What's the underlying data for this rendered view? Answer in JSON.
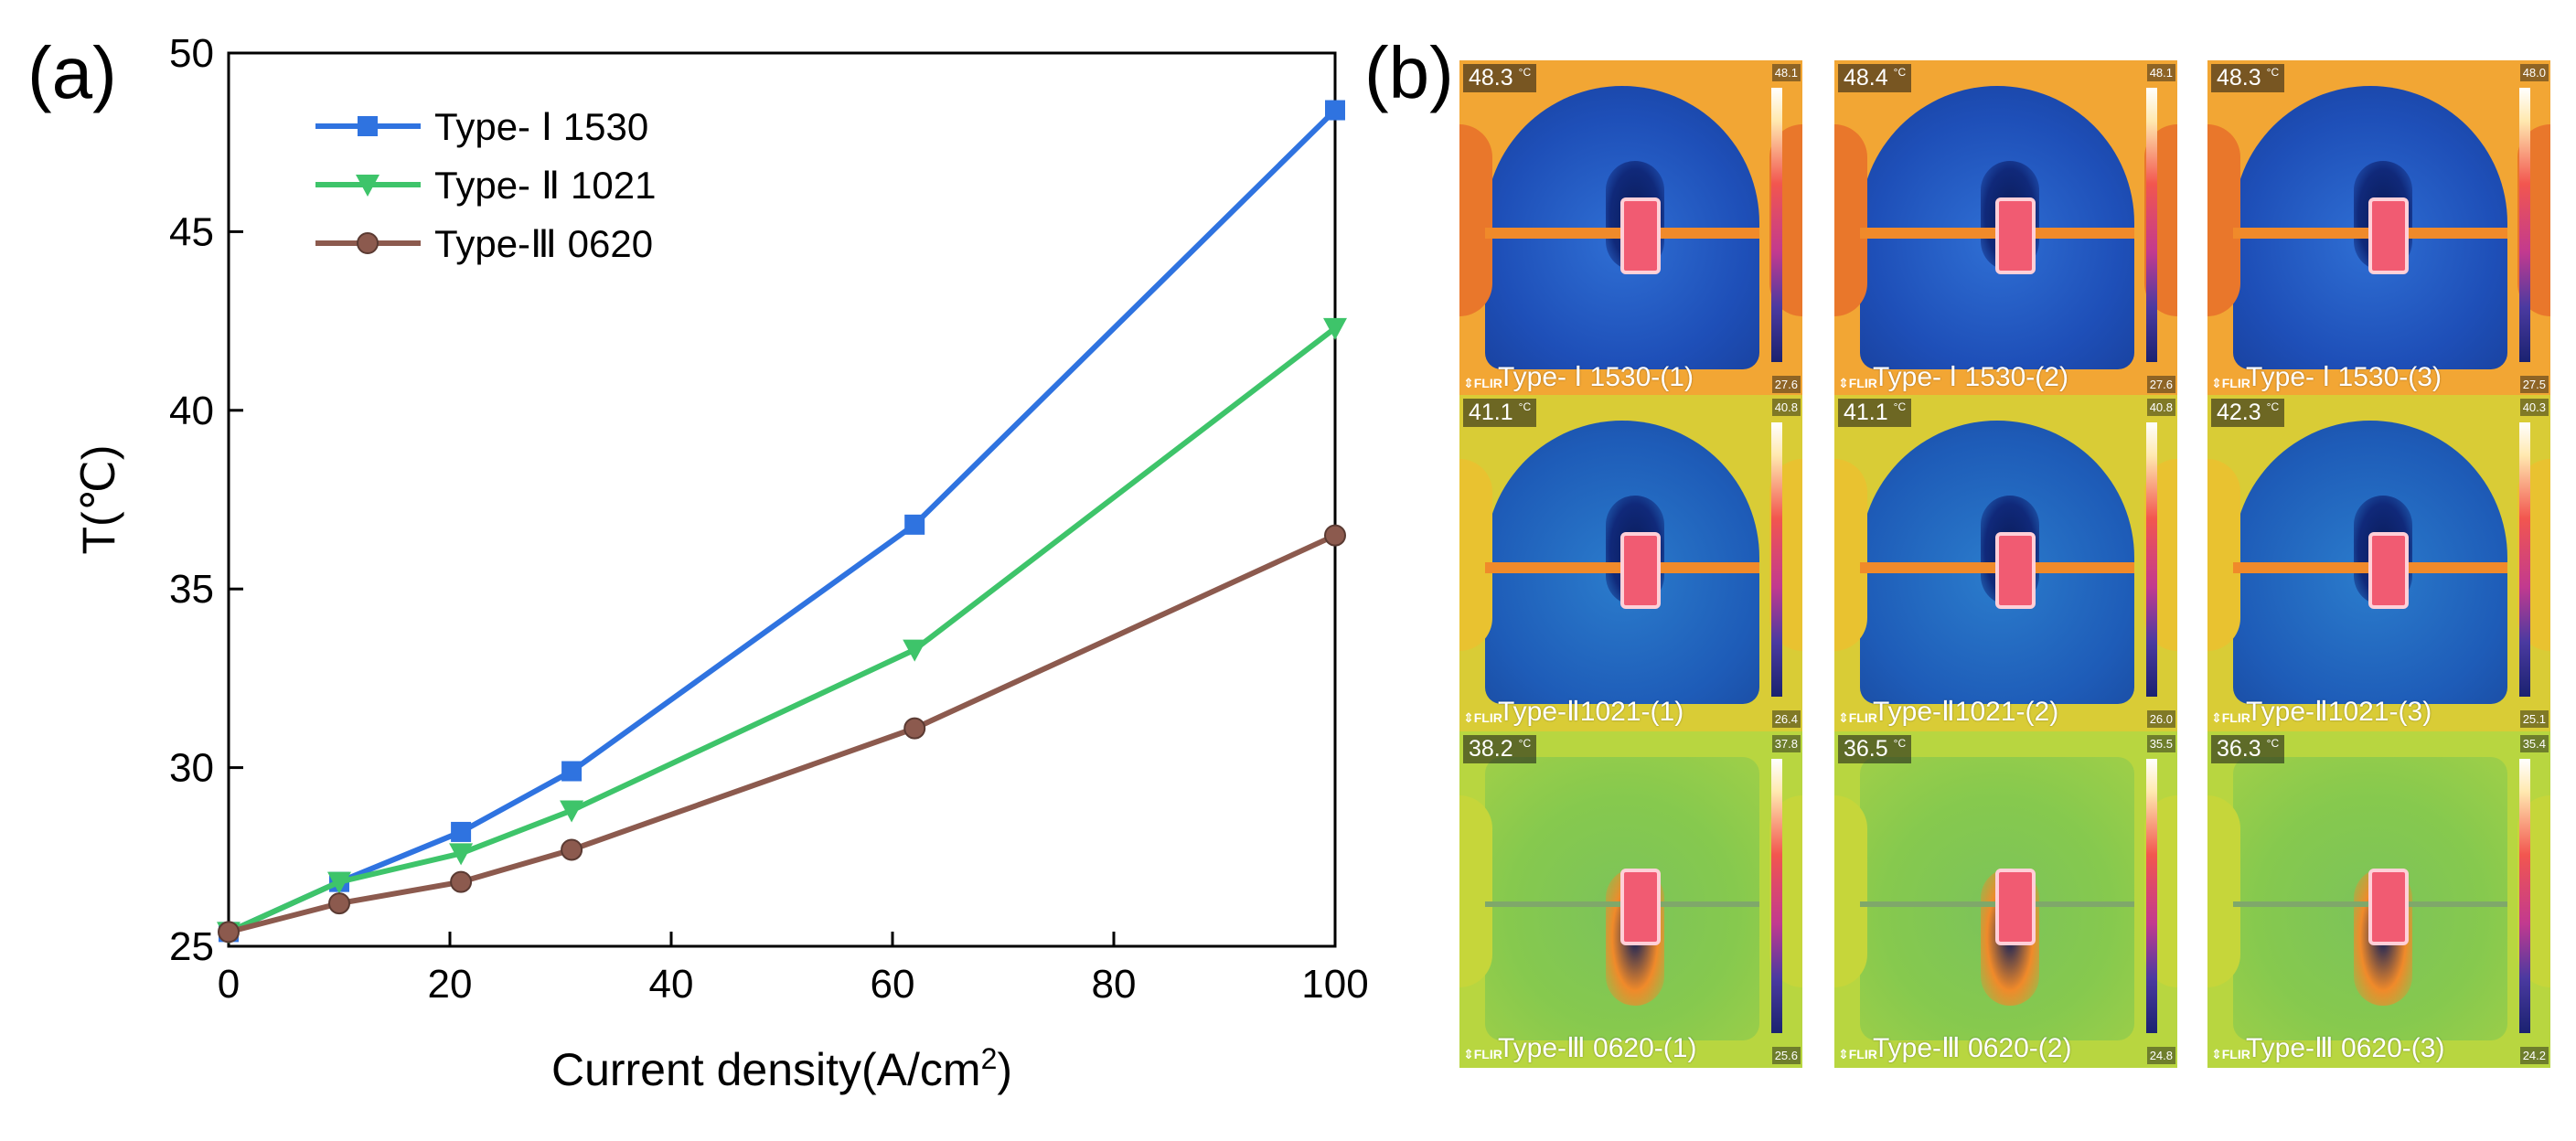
{
  "panel_labels": {
    "a": "(a)",
    "b": "(b)"
  },
  "chart_data": {
    "type": "line",
    "title": "",
    "xlabel": "Current density(A/cm",
    "xlabel_sup": "2",
    "xlabel_close": ")",
    "ylabel": "T(℃)",
    "xlim": [
      0,
      100
    ],
    "ylim": [
      25,
      50
    ],
    "xticks": [
      0,
      20,
      40,
      60,
      80,
      100
    ],
    "yticks": [
      25,
      30,
      35,
      40,
      45,
      50
    ],
    "legend_position": "top-left",
    "x": [
      0,
      10,
      21,
      31,
      62,
      100
    ],
    "series": [
      {
        "name": "Type- Ⅰ  1530",
        "color": "#2f73e0",
        "marker": "square",
        "values": [
          25.4,
          26.8,
          28.2,
          29.9,
          36.8,
          48.4
        ]
      },
      {
        "name": "Type- Ⅱ  1021",
        "color": "#3ec46a",
        "marker": "triangle-down",
        "values": [
          25.4,
          26.8,
          27.6,
          28.8,
          33.3,
          42.3
        ]
      },
      {
        "name": "Type-Ⅲ 0620",
        "color": "#8c5a4e",
        "marker": "circle",
        "values": [
          25.4,
          26.2,
          26.8,
          27.7,
          31.1,
          36.5
        ]
      }
    ]
  },
  "thermal_images": [
    {
      "caption": "Type- Ⅰ 1530-(1)",
      "max_temp": "48.3",
      "scale_max": "48.1",
      "scale_min": "27.6"
    },
    {
      "caption": "Type- Ⅰ 1530-(2)",
      "max_temp": "48.4",
      "scale_max": "48.1",
      "scale_min": "27.6"
    },
    {
      "caption": "Type- Ⅰ 1530-(3)",
      "max_temp": "48.3",
      "scale_max": "48.0",
      "scale_min": "27.5"
    },
    {
      "caption": "Type-Ⅱ1021-(1)",
      "max_temp": "41.1",
      "scale_max": "40.8",
      "scale_min": "26.4"
    },
    {
      "caption": "Type-Ⅱ1021-(2)",
      "max_temp": "41.1",
      "scale_max": "40.8",
      "scale_min": "26.0"
    },
    {
      "caption": "Type-Ⅱ1021-(3)",
      "max_temp": "42.3",
      "scale_max": "40.3",
      "scale_min": "25.1"
    },
    {
      "caption": "Type-Ⅲ 0620-(1)",
      "max_temp": "38.2",
      "scale_max": "37.8",
      "scale_min": "25.6"
    },
    {
      "caption": "Type-Ⅲ 0620-(2)",
      "max_temp": "36.5",
      "scale_max": "35.5",
      "scale_min": "24.8"
    },
    {
      "caption": "Type-Ⅲ 0620-(3)",
      "max_temp": "36.3",
      "scale_max": "35.4",
      "scale_min": "24.2"
    }
  ],
  "thermal_ui": {
    "temp_unit": "°C",
    "logo": "⇕FLIR"
  }
}
